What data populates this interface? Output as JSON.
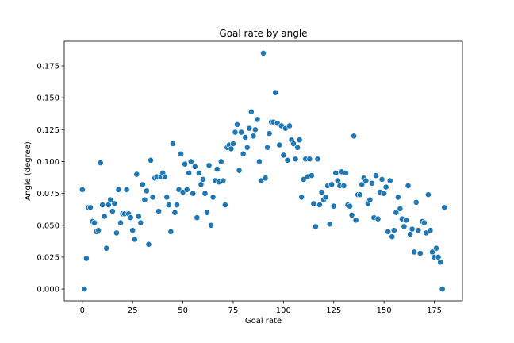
{
  "chart_data": {
    "type": "scatter",
    "title": "Goal rate by angle",
    "xlabel": "Goal rate",
    "ylabel": "Angle (degree)",
    "xlim": [
      -9,
      189
    ],
    "ylim": [
      -0.0093,
      0.1943
    ],
    "xticks": [
      0,
      25,
      50,
      75,
      100,
      125,
      150,
      175
    ],
    "xtick_labels": [
      "0",
      "25",
      "50",
      "75",
      "100",
      "125",
      "150",
      "175"
    ],
    "yticks": [
      0,
      0.025,
      0.05,
      0.075,
      0.1,
      0.125,
      0.15,
      0.175
    ],
    "ytick_labels": [
      "0.000",
      "0.025",
      "0.050",
      "0.075",
      "0.100",
      "0.125",
      "0.150",
      "0.175"
    ],
    "grid": false,
    "color": "#1f77b4",
    "points": [
      [
        0,
        0.078
      ],
      [
        1,
        0.0
      ],
      [
        2,
        0.024
      ],
      [
        3,
        0.064
      ],
      [
        4,
        0.064
      ],
      [
        5,
        0.053
      ],
      [
        6,
        0.052
      ],
      [
        7,
        0.045
      ],
      [
        8,
        0.046
      ],
      [
        9,
        0.099
      ],
      [
        10,
        0.066
      ],
      [
        11,
        0.057
      ],
      [
        12,
        0.032
      ],
      [
        13,
        0.066
      ],
      [
        14,
        0.07
      ],
      [
        15,
        0.061
      ],
      [
        16,
        0.067
      ],
      [
        17,
        0.044
      ],
      [
        18,
        0.078
      ],
      [
        19,
        0.052
      ],
      [
        20,
        0.059
      ],
      [
        21,
        0.059
      ],
      [
        22,
        0.078
      ],
      [
        23,
        0.059
      ],
      [
        24,
        0.056
      ],
      [
        25,
        0.046
      ],
      [
        26,
        0.039
      ],
      [
        27,
        0.09
      ],
      [
        28,
        0.057
      ],
      [
        29,
        0.052
      ],
      [
        30,
        0.082
      ],
      [
        31,
        0.07
      ],
      [
        32,
        0.077
      ],
      [
        33,
        0.035
      ],
      [
        34,
        0.101
      ],
      [
        35,
        0.072
      ],
      [
        36,
        0.087
      ],
      [
        37,
        0.088
      ],
      [
        38,
        0.061
      ],
      [
        39,
        0.088
      ],
      [
        40,
        0.091
      ],
      [
        41,
        0.088
      ],
      [
        42,
        0.072
      ],
      [
        43,
        0.066
      ],
      [
        44,
        0.045
      ],
      [
        45,
        0.114
      ],
      [
        46,
        0.06
      ],
      [
        47,
        0.066
      ],
      [
        48,
        0.078
      ],
      [
        49,
        0.106
      ],
      [
        50,
        0.076
      ],
      [
        51,
        0.098
      ],
      [
        52,
        0.078
      ],
      [
        53,
        0.091
      ],
      [
        54,
        0.1
      ],
      [
        55,
        0.075
      ],
      [
        56,
        0.096
      ],
      [
        57,
        0.056
      ],
      [
        58,
        0.091
      ],
      [
        59,
        0.082
      ],
      [
        60,
        0.086
      ],
      [
        61,
        0.075
      ],
      [
        62,
        0.06
      ],
      [
        63,
        0.097
      ],
      [
        64,
        0.05
      ],
      [
        65,
        0.072
      ],
      [
        66,
        0.085
      ],
      [
        67,
        0.094
      ],
      [
        68,
        0.084
      ],
      [
        69,
        0.1
      ],
      [
        70,
        0.085
      ],
      [
        71,
        0.066
      ],
      [
        72,
        0.111
      ],
      [
        73,
        0.113
      ],
      [
        74,
        0.11
      ],
      [
        75,
        0.114
      ],
      [
        76,
        0.123
      ],
      [
        77,
        0.129
      ],
      [
        78,
        0.093
      ],
      [
        79,
        0.123
      ],
      [
        80,
        0.106
      ],
      [
        81,
        0.119
      ],
      [
        82,
        0.111
      ],
      [
        83,
        0.126
      ],
      [
        84,
        0.139
      ],
      [
        85,
        0.12
      ],
      [
        86,
        0.125
      ],
      [
        87,
        0.133
      ],
      [
        88,
        0.1
      ],
      [
        89,
        0.085
      ],
      [
        90,
        0.185
      ],
      [
        91,
        0.087
      ],
      [
        92,
        0.111
      ],
      [
        93,
        0.122
      ],
      [
        94,
        0.131
      ],
      [
        95,
        0.131
      ],
      [
        96,
        0.154
      ],
      [
        97,
        0.13
      ],
      [
        98,
        0.113
      ],
      [
        99,
        0.128
      ],
      [
        100,
        0.105
      ],
      [
        101,
        0.126
      ],
      [
        102,
        0.101
      ],
      [
        103,
        0.128
      ],
      [
        104,
        0.117
      ],
      [
        105,
        0.114
      ],
      [
        106,
        0.102
      ],
      [
        107,
        0.111
      ],
      [
        108,
        0.117
      ],
      [
        109,
        0.072
      ],
      [
        110,
        0.086
      ],
      [
        111,
        0.102
      ],
      [
        112,
        0.088
      ],
      [
        113,
        0.102
      ],
      [
        114,
        0.089
      ],
      [
        115,
        0.067
      ],
      [
        116,
        0.049
      ],
      [
        117,
        0.102
      ],
      [
        118,
        0.066
      ],
      [
        119,
        0.076
      ],
      [
        120,
        0.07
      ],
      [
        121,
        0.072
      ],
      [
        122,
        0.081
      ],
      [
        123,
        0.051
      ],
      [
        124,
        0.082
      ],
      [
        125,
        0.065
      ],
      [
        126,
        0.091
      ],
      [
        127,
        0.085
      ],
      [
        128,
        0.081
      ],
      [
        129,
        0.092
      ],
      [
        130,
        0.081
      ],
      [
        131,
        0.091
      ],
      [
        132,
        0.066
      ],
      [
        133,
        0.065
      ],
      [
        134,
        0.058
      ],
      [
        135,
        0.12
      ],
      [
        136,
        0.054
      ],
      [
        137,
        0.074
      ],
      [
        138,
        0.074
      ],
      [
        139,
        0.082
      ],
      [
        140,
        0.087
      ],
      [
        141,
        0.085
      ],
      [
        142,
        0.067
      ],
      [
        143,
        0.07
      ],
      [
        144,
        0.083
      ],
      [
        145,
        0.056
      ],
      [
        146,
        0.089
      ],
      [
        147,
        0.055
      ],
      [
        148,
        0.076
      ],
      [
        149,
        0.086
      ],
      [
        150,
        0.075
      ],
      [
        151,
        0.08
      ],
      [
        152,
        0.045
      ],
      [
        153,
        0.085
      ],
      [
        154,
        0.041
      ],
      [
        155,
        0.046
      ],
      [
        156,
        0.06
      ],
      [
        157,
        0.072
      ],
      [
        158,
        0.063
      ],
      [
        159,
        0.055
      ],
      [
        160,
        0.049
      ],
      [
        161,
        0.054
      ],
      [
        162,
        0.081
      ],
      [
        163,
        0.043
      ],
      [
        164,
        0.047
      ],
      [
        165,
        0.029
      ],
      [
        166,
        0.068
      ],
      [
        167,
        0.046
      ],
      [
        168,
        0.028
      ],
      [
        169,
        0.053
      ],
      [
        170,
        0.052
      ],
      [
        171,
        0.044
      ],
      [
        172,
        0.074
      ],
      [
        173,
        0.046
      ],
      [
        174,
        0.029
      ],
      [
        175,
        0.025
      ],
      [
        176,
        0.032
      ],
      [
        177,
        0.025
      ],
      [
        178,
        0.021
      ],
      [
        179,
        0.0
      ],
      [
        180,
        0.064
      ]
    ]
  }
}
